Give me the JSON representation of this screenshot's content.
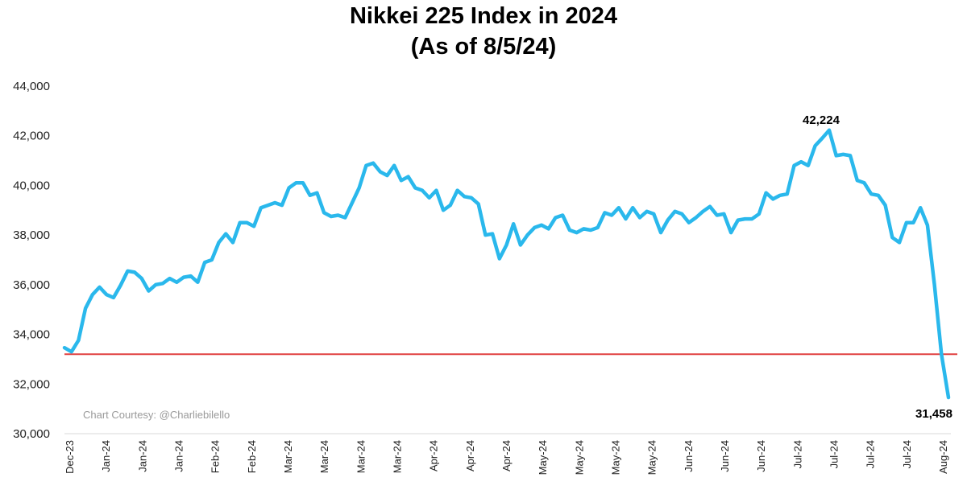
{
  "chart_data": {
    "type": "line",
    "title": "Nikkei 225 Index in 2024",
    "subtitle": "(As of 8/5/24)",
    "xlabel": "",
    "ylabel": "",
    "ylim": [
      30000,
      44000
    ],
    "yticks": [
      "30,000",
      "32,000",
      "34,000",
      "36,000",
      "38,000",
      "40,000",
      "42,000",
      "44,000"
    ],
    "xticks": [
      "Dec-23",
      "Jan-24",
      "Jan-24",
      "Jan-24",
      "Feb-24",
      "Feb-24",
      "Mar-24",
      "Mar-24",
      "Mar-24",
      "Mar-24",
      "Apr-24",
      "Apr-24",
      "Apr-24",
      "May-24",
      "May-24",
      "May-24",
      "May-24",
      "Jun-24",
      "Jun-24",
      "Jun-24",
      "Jul-24",
      "Jul-24",
      "Jul-24",
      "Jul-24",
      "Aug-24"
    ],
    "grid": false,
    "legend": "none",
    "series": [
      {
        "color": "#2ab8ec",
        "values": [
          33460,
          33300,
          33760,
          35050,
          35600,
          35900,
          35600,
          35480,
          35980,
          36550,
          36500,
          36250,
          35750,
          36000,
          36050,
          36250,
          36100,
          36300,
          36350,
          36100,
          36900,
          37000,
          37700,
          38050,
          37700,
          38500,
          38500,
          38350,
          39100,
          39200,
          39300,
          39200,
          39900,
          40100,
          40100,
          39600,
          39700,
          38900,
          38750,
          38800,
          38700,
          39300,
          39900,
          40800,
          40900,
          40550,
          40400,
          40800,
          40200,
          40350,
          39900,
          39800,
          39500,
          39800,
          39000,
          39200,
          39800,
          39550,
          39500,
          39250,
          38000,
          38050,
          37050,
          37600,
          38450,
          37600,
          38000,
          38300,
          38400,
          38250,
          38700,
          38800,
          38200,
          38100,
          38250,
          38200,
          38300,
          38900,
          38800,
          39100,
          38650,
          39100,
          38700,
          38950,
          38850,
          38100,
          38600,
          38950,
          38850,
          38500,
          38700,
          38950,
          39150,
          38800,
          38850,
          38100,
          38600,
          38650,
          38650,
          38850,
          39700,
          39450,
          39600,
          39650,
          40800,
          40950,
          40800,
          41600,
          41900,
          42224,
          41200,
          41250,
          41200,
          40200,
          40100,
          39650,
          39600,
          39200,
          37900,
          37700,
          38500,
          38500,
          39100,
          38400,
          36000,
          33200,
          31458
        ]
      }
    ],
    "annotations": [
      {
        "text": "42,224",
        "value": 42224
      },
      {
        "text": "31,458",
        "value": 31458
      }
    ],
    "reference_line": {
      "value": 33200,
      "color": "#e04040"
    },
    "credit": "Chart Courtesy: @Charliebilello"
  }
}
